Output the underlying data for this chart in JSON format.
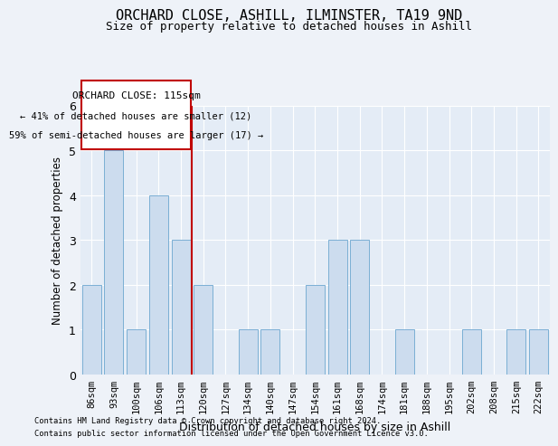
{
  "title": "ORCHARD CLOSE, ASHILL, ILMINSTER, TA19 9ND",
  "subtitle": "Size of property relative to detached houses in Ashill",
  "xlabel": "Distribution of detached houses by size in Ashill",
  "ylabel": "Number of detached properties",
  "categories": [
    "86sqm",
    "93sqm",
    "100sqm",
    "106sqm",
    "113sqm",
    "120sqm",
    "127sqm",
    "134sqm",
    "140sqm",
    "147sqm",
    "154sqm",
    "161sqm",
    "168sqm",
    "174sqm",
    "181sqm",
    "188sqm",
    "195sqm",
    "202sqm",
    "208sqm",
    "215sqm",
    "222sqm"
  ],
  "values": [
    2,
    5,
    1,
    4,
    3,
    2,
    0,
    1,
    1,
    0,
    2,
    3,
    3,
    0,
    1,
    0,
    0,
    1,
    0,
    1,
    1
  ],
  "bar_color": "#ccdcee",
  "bar_edge_color": "#7bafd4",
  "vline_color": "#c00000",
  "annotation_lines": [
    "ORCHARD CLOSE: 115sqm",
    "← 41% of detached houses are smaller (12)",
    "59% of semi-detached houses are larger (17) →"
  ],
  "annotation_box_color": "#ffffff",
  "annotation_box_edge_color": "#c00000",
  "ylim": [
    0,
    6
  ],
  "yticks": [
    0,
    1,
    2,
    3,
    4,
    5,
    6
  ],
  "footer_line1": "Contains HM Land Registry data © Crown copyright and database right 2024.",
  "footer_line2": "Contains public sector information licensed under the Open Government Licence v3.0.",
  "background_color": "#eef2f8",
  "plot_bg_color": "#e4ecf6"
}
